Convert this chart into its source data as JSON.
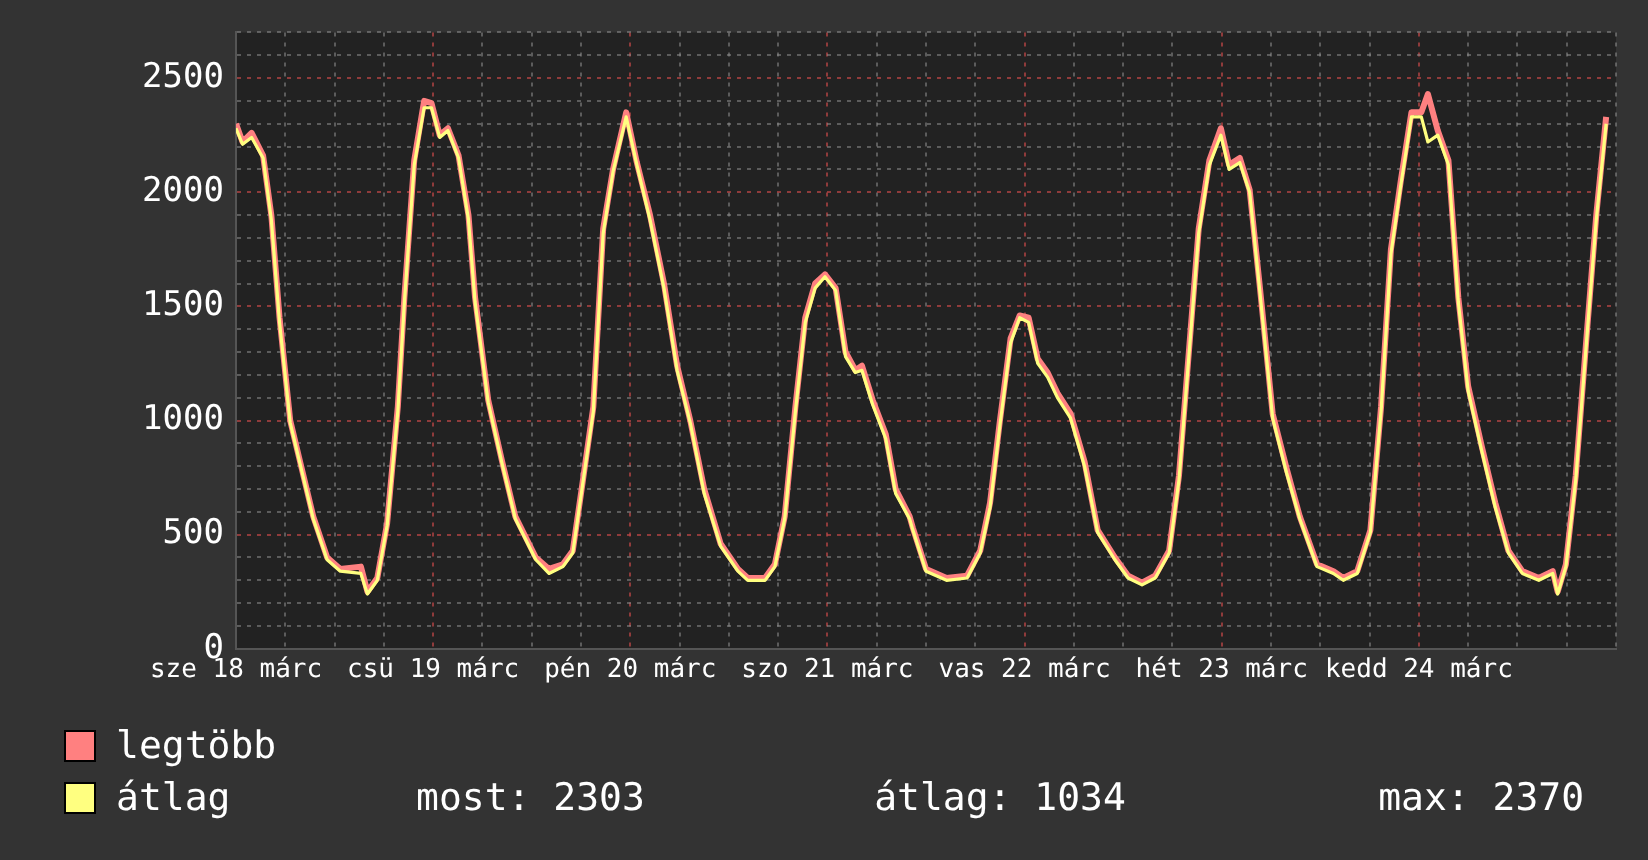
{
  "chart_data": {
    "type": "line",
    "xlim": [
      "--03-18",
      "--03-25"
    ],
    "xticks": [
      {
        "value": "--03-18",
        "label": "sze 18 márc"
      },
      {
        "value": "--03-18T06:00",
        "label": null
      },
      {
        "value": "--03-18T12:00",
        "label": null
      },
      {
        "value": "--03-18T18:00",
        "label": null
      },
      {
        "value": "--03-19",
        "label": "csü 19 márc"
      },
      {
        "value": "--03-19T06:00",
        "label": null
      },
      {
        "value": "--03-19T12:00",
        "label": null
      },
      {
        "value": "--03-19T18:00",
        "label": null
      },
      {
        "value": "--03-20",
        "label": "pén 20 márc"
      },
      {
        "value": "--03-20T06:00",
        "label": null
      },
      {
        "value": "--03-20T12:00",
        "label": null
      },
      {
        "value": "--03-20T18:00",
        "label": null
      },
      {
        "value": "--03-21",
        "label": "szo 21 márc"
      },
      {
        "value": "--03-21T06:00",
        "label": null
      },
      {
        "value": "--03-21T12:00",
        "label": null
      },
      {
        "value": "--03-21T18:00",
        "label": null
      },
      {
        "value": "--03-22",
        "label": "vas 22 márc"
      },
      {
        "value": "--03-22T06:00",
        "label": null
      },
      {
        "value": "--03-22T12:00",
        "label": null
      },
      {
        "value": "--03-22T18:00",
        "label": null
      },
      {
        "value": "--03-23",
        "label": "hét 23 márc"
      },
      {
        "value": "--03-23T06:00",
        "label": null
      },
      {
        "value": "--03-23T12:00",
        "label": null
      },
      {
        "value": "--03-23T18:00",
        "label": null
      },
      {
        "value": "--03-24",
        "label": "kedd 24 márc"
      },
      {
        "value": "--03-24T06:00",
        "label": null
      },
      {
        "value": "--03-24T12:00",
        "label": null
      },
      {
        "value": "--03-24T18:00",
        "label": null
      },
      {
        "value": "--03-25",
        "label": null
      }
    ],
    "ylim": [
      0,
      2700
    ],
    "yticks": [
      0,
      {
        "value": 100,
        "label": null
      },
      {
        "value": 200,
        "label": null
      },
      {
        "value": 300,
        "label": null
      },
      {
        "value": 400,
        "label": null
      },
      500,
      {
        "value": 600,
        "label": null
      },
      {
        "value": 700,
        "label": null
      },
      {
        "value": 800,
        "label": null
      },
      {
        "value": 900,
        "label": null
      },
      1000,
      {
        "value": 1100,
        "label": null
      },
      {
        "value": 1200,
        "label": null
      },
      {
        "value": 1300,
        "label": null
      },
      {
        "value": 1400,
        "label": null
      },
      1500,
      {
        "value": 1600,
        "label": null
      },
      {
        "value": 1700,
        "label": null
      },
      {
        "value": 1800,
        "label": null
      },
      {
        "value": 1900,
        "label": null
      },
      2000,
      {
        "value": 2100,
        "label": null
      },
      {
        "value": 2200,
        "label": null
      },
      {
        "value": 2300,
        "label": null
      },
      {
        "value": 2400,
        "label": null
      },
      2500,
      {
        "value": 2600,
        "label": null
      },
      {
        "value": 2700,
        "label": null
      }
    ],
    "x": [
      "--03-18T00:00",
      "--03-18T00:48",
      "--03-18T01:54",
      "--03-18T03:18",
      "--03-18T04:18",
      "--03-18T05:18",
      "--03-18T06:36",
      "--03-18T07:48",
      "--03-18T09:24",
      "--03-18T11:06",
      "--03-18T12:42",
      "--03-18T15:12",
      "--03-18T16:00",
      "--03-18T17:12",
      "--03-18T18:24",
      "--03-18T19:42",
      "--03-18T20:30",
      "--03-18T21:42",
      "--03-18T22:54",
      "--03-18T23:48",
      "--03-19T00:48",
      "--03-19T01:48",
      "--03-19T03:06",
      "--03-19T04:18",
      "--03-19T05:06",
      "--03-19T06:42",
      "--03-19T08:24",
      "--03-19T10:00",
      "--03-19T12:30",
      "--03-19T14:06",
      "--03-19T15:48",
      "--03-19T17:00",
      "--03-19T18:12",
      "--03-19T19:30",
      "--03-19T20:42",
      "--03-19T21:54",
      "--03-19T23:30",
      "--03-20T00:48",
      "--03-20T02:24",
      "--03-20T04:06",
      "--03-20T05:42",
      "--03-20T07:18",
      "--03-20T09:00",
      "--03-20T11:00",
      "--03-20T13:06",
      "--03-20T14:18",
      "--03-20T16:24",
      "--03-20T17:36",
      "--03-20T18:48",
      "--03-20T20:06",
      "--03-20T21:18",
      "--03-20T22:30",
      "--03-20T23:42",
      "--03-21T01:00",
      "--03-21T02:12",
      "--03-21T03:24",
      "--03-21T04:12",
      "--03-21T05:30",
      "--03-21T07:06",
      "--03-21T08:18",
      "--03-21T10:00",
      "--03-21T10:24",
      "--03-21T12:00",
      "--03-21T14:30",
      "--03-21T17:00",
      "--03-21T18:36",
      "--03-21T19:48",
      "--03-21T21:00",
      "--03-21T22:18",
      "--03-21T23:24",
      "--03-22T00:30",
      "--03-22T01:36",
      "--03-22T02:48",
      "--03-22T04:00",
      "--03-22T05:36",
      "--03-22T07:18",
      "--03-22T08:54",
      "--03-22T11:00",
      "--03-22T12:36",
      "--03-22T14:18",
      "--03-22T15:54",
      "--03-22T17:36",
      "--03-22T18:48",
      "--03-22T20:00",
      "--03-22T21:12",
      "--03-22T22:30",
      "--03-22T23:54",
      "--03-23T00:54",
      "--03-23T02:12",
      "--03-23T03:24",
      "--03-23T04:36",
      "--03-23T06:12",
      "--03-23T07:54",
      "--03-23T09:30",
      "--03-23T11:36",
      "--03-23T13:36",
      "--03-23T14:48",
      "--03-23T16:30",
      "--03-23T18:06",
      "--03-23T19:24",
      "--03-23T20:36",
      "--03-23T21:48",
      "--03-23T23:06",
      "--03-24T00:18",
      "--03-24T01:06",
      "--03-24T02:18",
      "--03-24T03:36",
      "--03-24T04:48",
      "--03-24T06:00",
      "--03-24T07:42",
      "--03-24T09:18",
      "--03-24T10:54",
      "--03-24T12:36",
      "--03-24T14:36",
      "--03-24T16:18",
      "--03-24T16:54",
      "--03-24T17:54",
      "--03-24T19:06",
      "--03-24T20:24",
      "--03-24T21:36",
      "--03-24T22:48"
    ],
    "series": [
      {
        "name": "legtöbb",
        "color": "#ff8080",
        "values": [
          2300,
          2220,
          2260,
          2160,
          1900,
          1450,
          1000,
          820,
          580,
          400,
          350,
          360,
          250,
          310,
          550,
          1060,
          1540,
          2140,
          2400,
          2390,
          2250,
          2280,
          2160,
          1900,
          1540,
          1090,
          820,
          580,
          400,
          350,
          370,
          430,
          730,
          1060,
          1840,
          2100,
          2350,
          2130,
          1900,
          1600,
          1240,
          1000,
          700,
          460,
          350,
          310,
          310,
          370,
          580,
          1060,
          1450,
          1600,
          1640,
          1580,
          1300,
          1220,
          1240,
          1090,
          940,
          700,
          580,
          530,
          350,
          310,
          320,
          430,
          640,
          1000,
          1360,
          1460,
          1450,
          1270,
          1210,
          1120,
          1030,
          820,
          520,
          400,
          320,
          290,
          320,
          430,
          760,
          1300,
          1840,
          2140,
          2280,
          2120,
          2150,
          2010,
          1600,
          1030,
          790,
          580,
          370,
          340,
          310,
          340,
          520,
          1060,
          1750,
          2050,
          2350,
          2350,
          2430,
          2270,
          2140,
          1540,
          1150,
          880,
          640,
          430,
          340,
          310,
          340,
          250,
          370,
          760,
          1360,
          1900,
          2330
        ]
      },
      {
        "name": "átlag",
        "color": "#ffff80",
        "values": [
          2280,
          2210,
          2240,
          2150,
          1880,
          1430,
          990,
          810,
          570,
          390,
          340,
          330,
          240,
          300,
          540,
          1040,
          1520,
          2120,
          2370,
          2370,
          2240,
          2270,
          2150,
          1880,
          1520,
          1080,
          810,
          570,
          390,
          330,
          360,
          420,
          720,
          1040,
          1820,
          2090,
          2330,
          2120,
          1880,
          1580,
          1220,
          990,
          680,
          450,
          340,
          300,
          300,
          360,
          570,
          1040,
          1430,
          1580,
          1630,
          1570,
          1280,
          1210,
          1220,
          1070,
          920,
          680,
          570,
          520,
          340,
          300,
          310,
          420,
          620,
          980,
          1340,
          1450,
          1430,
          1250,
          1190,
          1100,
          1010,
          800,
          510,
          390,
          310,
          280,
          310,
          420,
          740,
          1280,
          1820,
          2120,
          2250,
          2100,
          2130,
          2000,
          1580,
          1010,
          770,
          570,
          360,
          330,
          300,
          330,
          510,
          1040,
          1730,
          2030,
          2330,
          2330,
          2220,
          2250,
          2120,
          1520,
          1130,
          860,
          620,
          420,
          330,
          300,
          330,
          240,
          360,
          740,
          1340,
          1880,
          2300
        ]
      }
    ],
    "grid": true,
    "legend": "bottom",
    "marker": "none",
    "line_style": "solid",
    "annotations": [
      "most: 2303",
      "átlag: 1034",
      "max: 2370"
    ]
  }
}
